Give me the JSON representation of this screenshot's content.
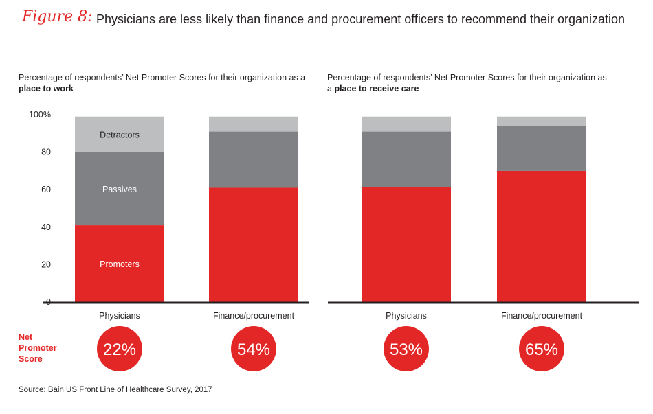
{
  "figure": {
    "label": "Figure 8:",
    "title": "Physicians are less likely than finance and procurement officers to recommend their organization"
  },
  "nps_label_lines": [
    "Net",
    "Promoter",
    "Score"
  ],
  "source": "Source: Bain US Front Line of Healthcare Survey, 2017",
  "colors": {
    "promoters": "#e32726",
    "passives": "#808184",
    "detractors": "#bcbec0",
    "accent": "#e32726",
    "axis": "#231f20"
  },
  "chart_data": [
    {
      "type": "bar",
      "stacked": true,
      "subtitle_pre": "Percentage of respondents’ Net Promoter Scores for their organization as a ",
      "subtitle_bold": "place to work",
      "categories": [
        "Physicians",
        "Finance/procurement"
      ],
      "series": [
        {
          "name": "Promoters",
          "values": [
            41,
            61
          ]
        },
        {
          "name": "Passives",
          "values": [
            39,
            30
          ]
        },
        {
          "name": "Detractors",
          "values": [
            19,
            8
          ]
        }
      ],
      "segment_labels": [
        "Promoters",
        "Passives",
        "Detractors"
      ],
      "ylim": [
        0,
        100
      ],
      "yticks": [
        "0",
        "20",
        "40",
        "60",
        "80",
        "100%"
      ],
      "net_promoter_scores": [
        "22%",
        "54%"
      ]
    },
    {
      "type": "bar",
      "stacked": true,
      "subtitle_pre": "Percentage of respondents’ Net Promoter Scores for their organization as a ",
      "subtitle_bold": "place to receive care",
      "categories": [
        "Physicians",
        "Finance/procurement"
      ],
      "series": [
        {
          "values": [
            61.5,
            70
          ]
        },
        {
          "values": [
            29.5,
            24
          ]
        },
        {
          "values": [
            8,
            5
          ]
        }
      ],
      "ylim": [
        0,
        100
      ],
      "net_promoter_scores": [
        "53%",
        "65%"
      ]
    }
  ]
}
